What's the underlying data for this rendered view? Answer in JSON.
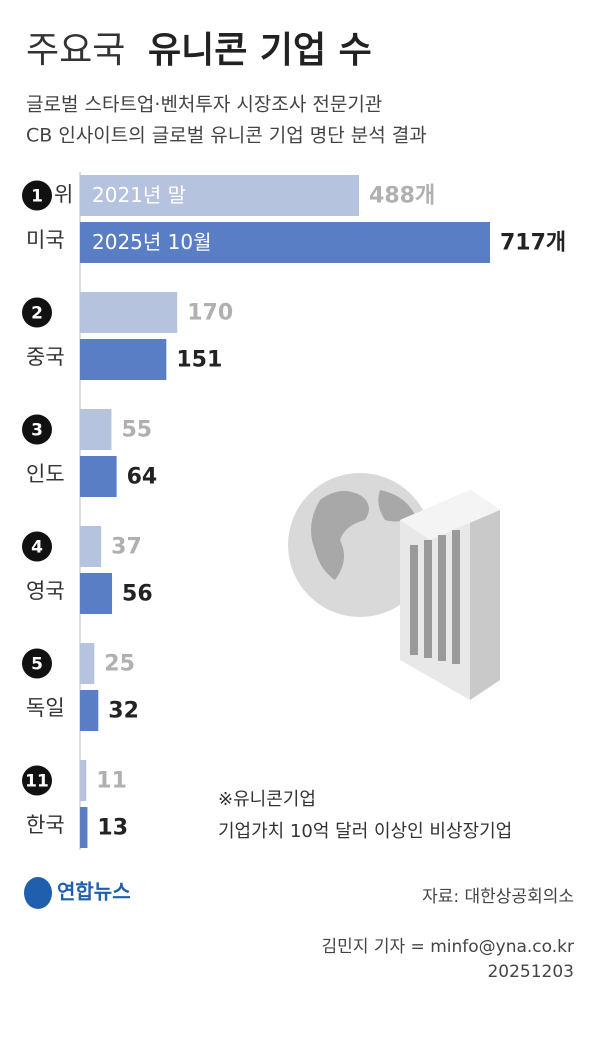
{
  "chart_data": {
    "type": "bar",
    "orientation": "horizontal",
    "title": [
      "주요국",
      "유니콘 기업 수"
    ],
    "subtitle": [
      "글로벌 스타트업·벤처투자 시장조사 전문기관",
      "CB 인사이트의 글로벌 유니콘 기업 명단 분석 결과"
    ],
    "categories": [
      "미국",
      "중국",
      "인도",
      "영국",
      "독일",
      "한국"
    ],
    "ranks": [
      "1",
      "2",
      "3",
      "4",
      "5",
      "11"
    ],
    "rank_suffix": "위",
    "xlim": [
      0,
      717
    ],
    "series": [
      {
        "name": "2021년 말",
        "color": "#b5c3df",
        "values": [
          488,
          170,
          55,
          37,
          25,
          11
        ],
        "value_labels": [
          "488개",
          "170",
          "55",
          "37",
          "25",
          "11"
        ]
      },
      {
        "name": "2025년 10월",
        "color": "#5a7ec6",
        "values": [
          717,
          151,
          64,
          56,
          32,
          13
        ],
        "value_labels": [
          "717개",
          "151",
          "64",
          "56",
          "32",
          "13"
        ]
      }
    ],
    "note": [
      "※유니콘기업",
      "기업가치 10억 달러 이상인 비상장기업"
    ],
    "logo": "연합뉴스",
    "source": "자료: 대한상공회의소",
    "credit": "김민지 기자 = minfo@yna.co.kr",
    "date": "20251203"
  }
}
